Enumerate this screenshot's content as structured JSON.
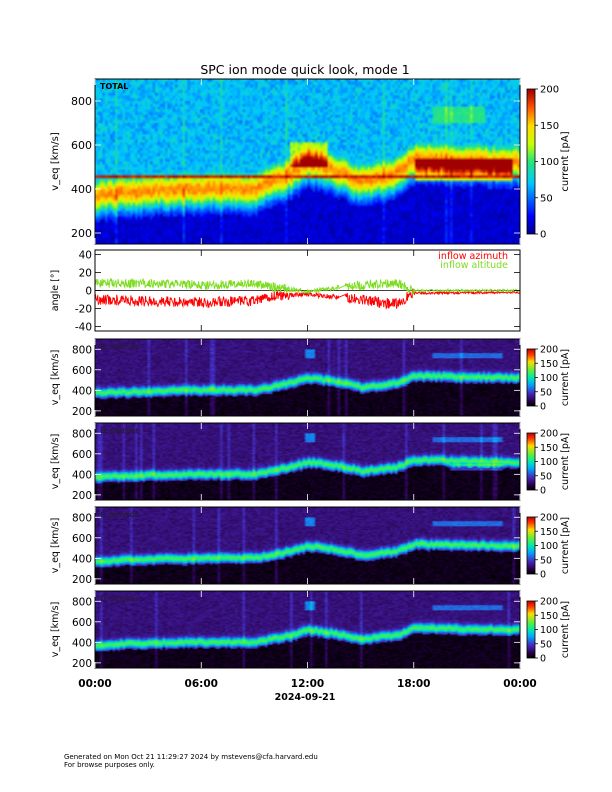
{
  "title": "SPC ion mode quick look, mode 1",
  "date_label": "2024-09-21",
  "x_ticks": [
    "00:00",
    "06:00",
    "12:00",
    "18:00",
    "00:00"
  ],
  "footer": {
    "line1": "Generated on Mon Oct 21 11:29:27 2024 by mstevens@cfa.harvard.edu",
    "line2": "For browse purposes only."
  },
  "colors": {
    "azimuth": "#ff0000",
    "altitude": "#7ddc1f"
  },
  "chart_data": [
    {
      "type": "heatmap",
      "panel_label": "TOTAL",
      "ylabel": "v_eq [km/s]",
      "y_ticks": [
        200,
        400,
        600,
        800
      ],
      "ylim": [
        150,
        900
      ],
      "colorbar": {
        "label": "current [pA]",
        "ticks": [
          0,
          50,
          100,
          150,
          200
        ],
        "range": [
          0,
          200
        ],
        "scale": "jet"
      },
      "core_speed_trace_kms": [
        [
          0,
          370
        ],
        [
          3,
          390
        ],
        [
          6,
          400
        ],
        [
          9,
          400
        ],
        [
          11,
          470
        ],
        [
          12,
          520
        ],
        [
          13,
          500
        ],
        [
          14,
          470
        ],
        [
          15,
          430
        ],
        [
          17,
          470
        ],
        [
          18,
          540
        ],
        [
          21,
          530
        ],
        [
          24,
          520
        ]
      ],
      "peak_current_pA": 200
    },
    {
      "type": "line",
      "ylabel": "angle [°]",
      "y_ticks": [
        -40,
        -20,
        0,
        20,
        40
      ],
      "ylim": [
        -45,
        45
      ],
      "series": [
        {
          "name": "inflow azimuth",
          "mean_trace_deg": [
            [
              0,
              -10
            ],
            [
              3,
              -12
            ],
            [
              6,
              -13
            ],
            [
              9,
              -12
            ],
            [
              10,
              -6
            ],
            [
              12,
              -4
            ],
            [
              14,
              -8
            ],
            [
              17,
              -15
            ],
            [
              18,
              -3
            ],
            [
              24,
              -2
            ]
          ]
        },
        {
          "name": "inflow altitude",
          "mean_trace_deg": [
            [
              0,
              8
            ],
            [
              3,
              8
            ],
            [
              6,
              6
            ],
            [
              9,
              8
            ],
            [
              10,
              4
            ],
            [
              12,
              -1
            ],
            [
              14,
              4
            ],
            [
              17,
              9
            ],
            [
              18,
              0
            ],
            [
              24,
              0
            ]
          ]
        }
      ]
    },
    {
      "type": "heatmap",
      "panel_label": "A sensor",
      "ylabel": "v_eq [km/s]",
      "y_ticks": [
        200,
        400,
        600,
        800
      ],
      "ylim": [
        150,
        900
      ],
      "colorbar": {
        "label": "current [pA]",
        "ticks": [
          0,
          50,
          100,
          150,
          200
        ],
        "range": [
          0,
          200
        ],
        "scale": "stereo"
      }
    },
    {
      "type": "heatmap",
      "panel_label": "B sensor",
      "ylabel": "v_eq [km/s]",
      "y_ticks": [
        200,
        400,
        600,
        800
      ],
      "ylim": [
        150,
        900
      ],
      "colorbar": {
        "label": "current [pA]",
        "ticks": [
          0,
          50,
          100,
          150,
          200
        ],
        "range": [
          0,
          200
        ],
        "scale": "stereo"
      }
    },
    {
      "type": "heatmap",
      "panel_label": "C sensor",
      "ylabel": "v_eq [km/s]",
      "y_ticks": [
        200,
        400,
        600,
        800
      ],
      "ylim": [
        150,
        900
      ],
      "colorbar": {
        "label": "current [pA]",
        "ticks": [
          0,
          50,
          100,
          150,
          200
        ],
        "range": [
          0,
          200
        ],
        "scale": "stereo"
      }
    },
    {
      "type": "heatmap",
      "panel_label": "D sensor",
      "ylabel": "v_eq [km/s]",
      "y_ticks": [
        200,
        400,
        600,
        800
      ],
      "ylim": [
        150,
        900
      ],
      "colorbar": {
        "label": "current [pA]",
        "ticks": [
          0,
          50,
          100,
          150,
          200
        ],
        "range": [
          0,
          200
        ],
        "scale": "stereo"
      }
    }
  ]
}
